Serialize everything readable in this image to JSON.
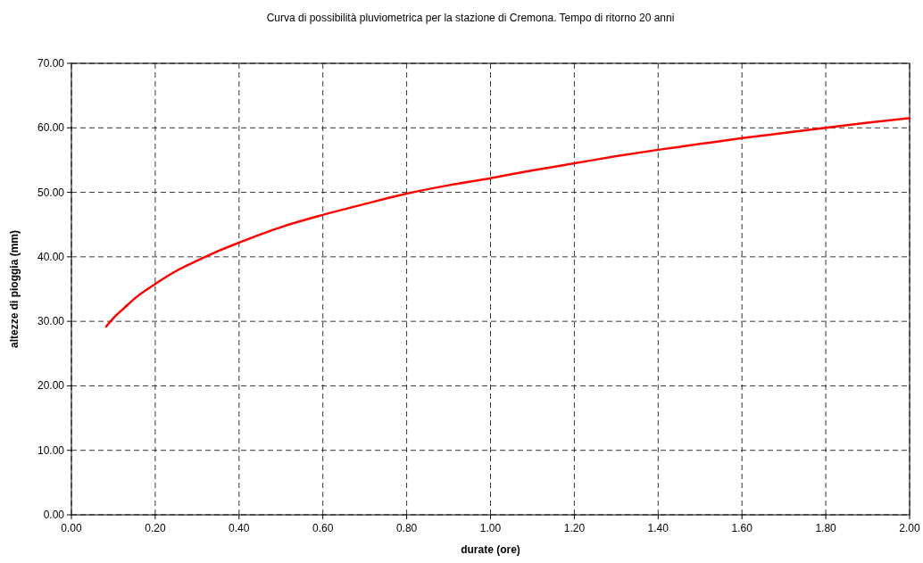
{
  "chart_data": {
    "type": "line",
    "title": "Curva di possibilità pluviometrica per la stazione di Cremona. Tempo di ritorno 20 anni",
    "xlabel": "durate  (ore)",
    "ylabel": "altezze di pioggia (mm)",
    "series": [
      {
        "color": "#ff0000",
        "x": [
          0.083,
          0.1,
          0.125,
          0.15,
          0.2,
          0.25,
          0.3,
          0.35,
          0.4,
          0.5,
          0.6,
          0.7,
          0.8,
          0.9,
          1.0,
          1.1,
          1.2,
          1.3,
          1.4,
          1.5,
          1.6,
          1.7,
          1.8,
          1.9,
          2.0
        ],
        "values": [
          29.2,
          30.5,
          32.0,
          33.5,
          35.8,
          37.8,
          39.4,
          40.9,
          42.2,
          44.6,
          46.5,
          48.2,
          49.8,
          51.1,
          52.2,
          53.4,
          54.5,
          55.6,
          56.6,
          57.5,
          58.4,
          59.2,
          60.0,
          60.8,
          61.5
        ]
      }
    ],
    "xlim": [
      0,
      2
    ],
    "xticks": [
      {
        "value": 0,
        "label": "0.00"
      },
      {
        "value": 0.2,
        "label": "0.20"
      },
      {
        "value": 0.4,
        "label": "0.40"
      },
      {
        "value": 0.6,
        "label": "0.60"
      },
      {
        "value": 0.8,
        "label": "0.80"
      },
      {
        "value": 1,
        "label": "1.00"
      },
      {
        "value": 1.2,
        "label": "1.20"
      },
      {
        "value": 1.4,
        "label": "1.40"
      },
      {
        "value": 1.6,
        "label": "1.60"
      },
      {
        "value": 1.8,
        "label": "1.80"
      },
      {
        "value": 2,
        "label": "2.00"
      }
    ],
    "ylim": [
      0,
      70
    ],
    "yticks": [
      {
        "value": 0,
        "label": "0.00"
      },
      {
        "value": 10,
        "label": "10.00"
      },
      {
        "value": 20,
        "label": "20.00"
      },
      {
        "value": 30,
        "label": "30.00"
      },
      {
        "value": 40,
        "label": "40.00"
      },
      {
        "value": 50,
        "label": "50.00"
      },
      {
        "value": 60,
        "label": "60.00"
      },
      {
        "value": 70,
        "label": "70.00"
      }
    ],
    "grid": true,
    "marker": "none",
    "line_style": "solid"
  }
}
